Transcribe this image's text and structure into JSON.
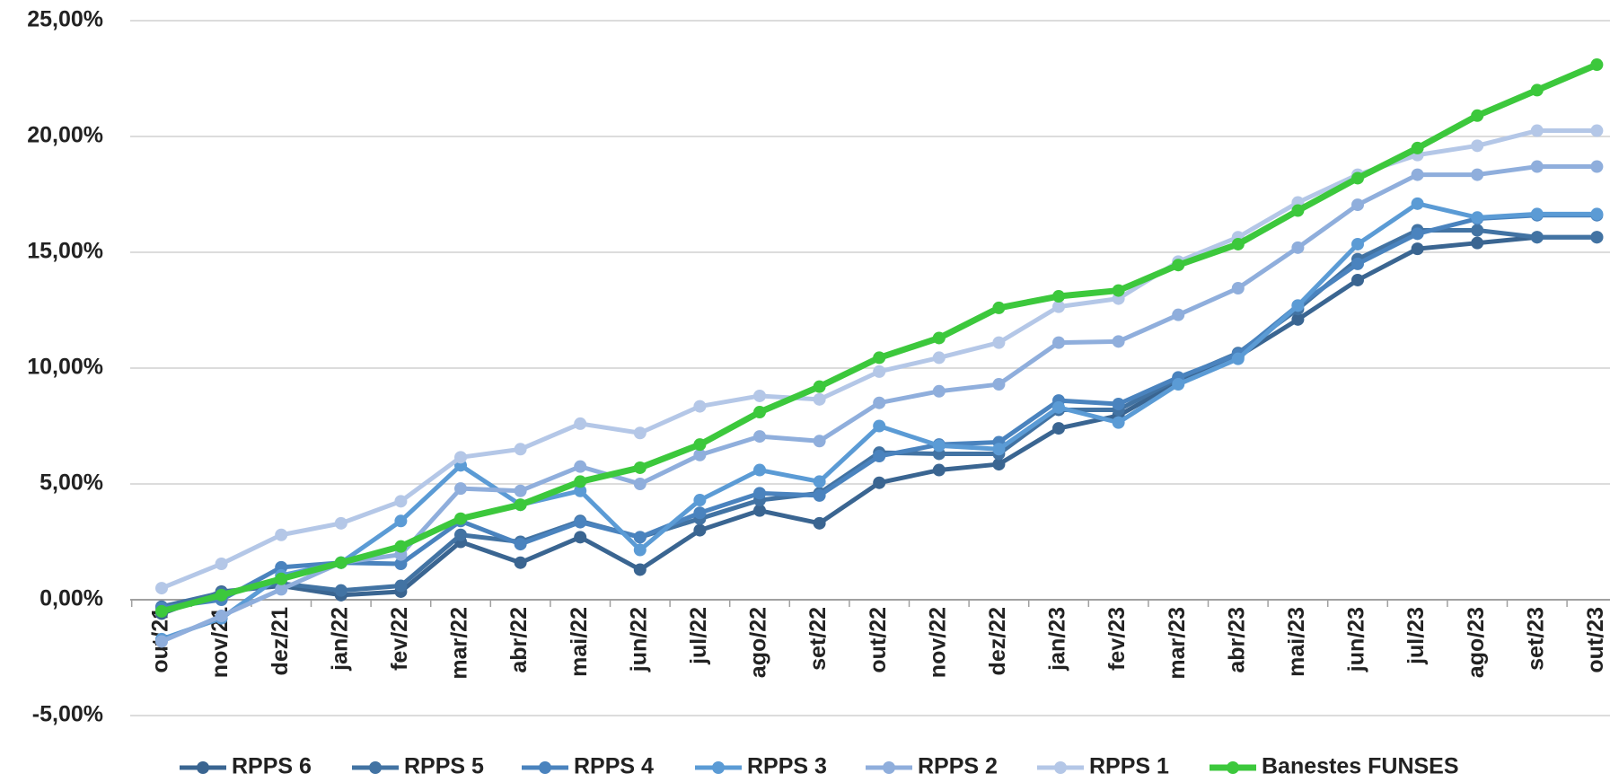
{
  "chart_data": {
    "type": "line",
    "categories": [
      "out/21",
      "nov/21",
      "dez/21",
      "jan/22",
      "fev/22",
      "mar/22",
      "abr/22",
      "mai/22",
      "jun/22",
      "jul/22",
      "ago/22",
      "set/22",
      "out/22",
      "nov/22",
      "dez/22",
      "jan/23",
      "fev/23",
      "mar/23",
      "abr/23",
      "mai/23",
      "jun/23",
      "jul/23",
      "ago/23",
      "set/23",
      "out/23"
    ],
    "series": [
      {
        "name": "RPPS 6",
        "color": "#3a6591",
        "values": [
          -0.6,
          0.35,
          0.6,
          0.2,
          0.35,
          2.5,
          1.6,
          2.7,
          1.3,
          3.0,
          3.85,
          3.3,
          5.05,
          5.6,
          5.85,
          7.4,
          7.95,
          9.4,
          10.5,
          12.1,
          13.8,
          15.15,
          15.4,
          15.65,
          15.65
        ]
      },
      {
        "name": "RPPS 5",
        "color": "#4273a3",
        "values": [
          -0.3,
          0.3,
          0.7,
          0.4,
          0.6,
          2.8,
          2.5,
          3.4,
          2.7,
          3.5,
          4.3,
          4.6,
          6.35,
          6.3,
          6.3,
          8.2,
          8.2,
          9.55,
          10.65,
          12.55,
          14.7,
          15.95,
          15.95,
          15.65,
          15.65
        ]
      },
      {
        "name": "RPPS 4",
        "color": "#4a83be",
        "values": [
          -0.35,
          0.0,
          1.4,
          1.6,
          1.55,
          3.4,
          2.4,
          3.35,
          2.7,
          3.75,
          4.6,
          4.5,
          6.2,
          6.7,
          6.8,
          8.6,
          8.45,
          9.6,
          10.6,
          12.7,
          14.5,
          15.8,
          16.45,
          16.6,
          16.6
        ]
      },
      {
        "name": "RPPS 3",
        "color": "#5b9bd5",
        "values": [
          -1.7,
          -0.8,
          1.05,
          1.6,
          3.4,
          5.8,
          4.1,
          4.7,
          2.15,
          4.3,
          5.6,
          5.1,
          7.5,
          6.65,
          6.5,
          8.3,
          7.65,
          9.3,
          10.4,
          12.7,
          15.35,
          17.1,
          16.5,
          16.65,
          16.65
        ]
      },
      {
        "name": "RPPS 2",
        "color": "#8faedc",
        "values": [
          -1.8,
          -0.7,
          0.45,
          1.6,
          1.95,
          4.8,
          4.7,
          5.75,
          5.0,
          6.25,
          7.05,
          6.85,
          8.5,
          9.0,
          9.3,
          11.1,
          11.15,
          12.3,
          13.45,
          15.2,
          17.05,
          18.35,
          18.35,
          18.7,
          18.7
        ]
      },
      {
        "name": "RPPS 1",
        "color": "#b4c7e7",
        "values": [
          0.5,
          1.55,
          2.8,
          3.3,
          4.25,
          6.15,
          6.5,
          7.6,
          7.2,
          8.35,
          8.8,
          8.65,
          9.85,
          10.45,
          11.1,
          12.65,
          13.0,
          14.6,
          15.65,
          17.15,
          18.35,
          19.2,
          19.6,
          20.25,
          20.25
        ]
      },
      {
        "name": "Banestes FUNSES",
        "color": "#3cc83c",
        "values": [
          -0.5,
          0.2,
          0.9,
          1.6,
          2.3,
          3.5,
          4.1,
          5.1,
          5.7,
          6.7,
          8.1,
          9.2,
          10.45,
          11.3,
          12.6,
          13.1,
          13.35,
          14.45,
          15.35,
          16.8,
          18.2,
          19.5,
          20.9,
          22.0,
          23.1
        ]
      }
    ],
    "ylim": [
      -5,
      25
    ],
    "yticks": [
      {
        "value": -5,
        "label": "-5,00%"
      },
      {
        "value": 0,
        "label": "0,00%"
      },
      {
        "value": 5,
        "label": "5,00%"
      },
      {
        "value": 10,
        "label": "10,00%"
      },
      {
        "value": 15,
        "label": "15,00%"
      },
      {
        "value": 20,
        "label": "20,00%"
      },
      {
        "value": 25,
        "label": "25,00%"
      }
    ],
    "grid": true,
    "legend": "bottom"
  }
}
